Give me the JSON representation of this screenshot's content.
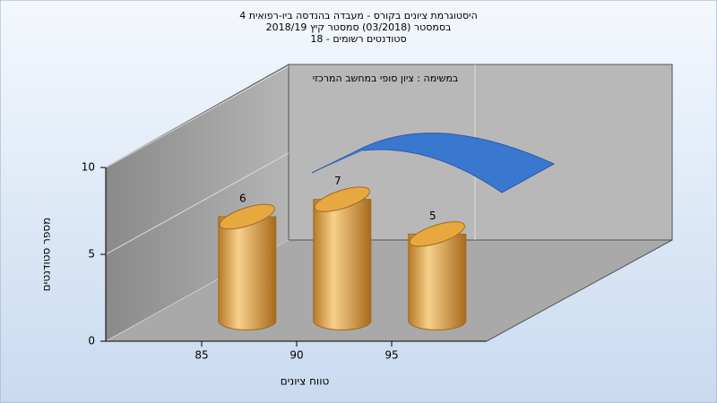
{
  "chart_data": {
    "type": "bar",
    "title": [
      "היסטוגרמת ציונים בקורס - מעבדה בהנדסה ביו-רפואית 4",
      "בסמסטר (03/2018) סמסטר קיץ 2018/19",
      "סטודנטים רשומים - 18"
    ],
    "annotation": "במשימה : ציון סופי במחשב המרכזי",
    "x_label": "טווח ציונים",
    "y_label": "מספר סטודנטים",
    "categories": [
      85,
      90,
      95
    ],
    "values": [
      6,
      7,
      5
    ],
    "color": "#e0a040",
    "ylim": [
      0,
      10
    ],
    "yticks": [
      0,
      5,
      10
    ],
    "grid": true
  }
}
